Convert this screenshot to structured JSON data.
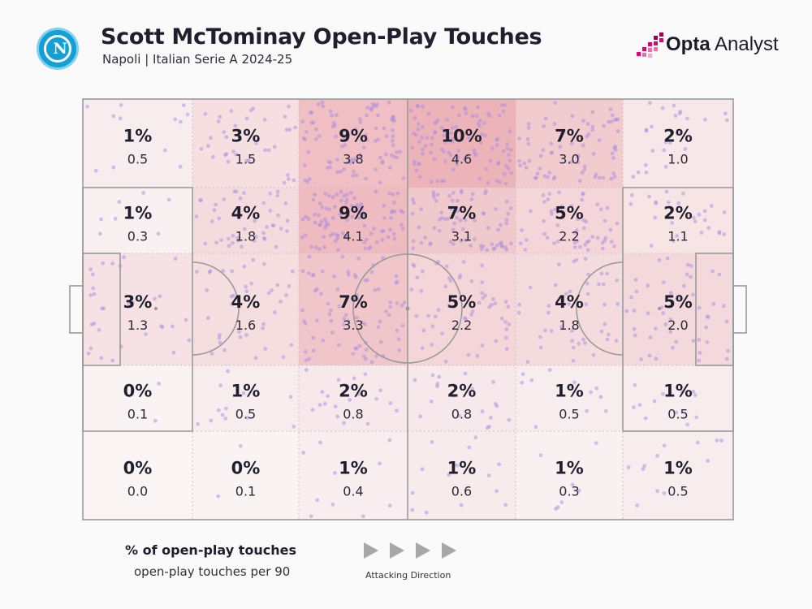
{
  "header": {
    "title": "Scott McTominay Open-Play Touches",
    "subtitle": "Napoli | Italian Serie A 2024-25",
    "club_badge_letter": "N",
    "brand_bold": "Opta",
    "brand_light": " Analyst"
  },
  "legend": {
    "pct_label": "% of open-play touches",
    "per90_label": "open-play touches per 90",
    "direction_label": "Attacking Direction"
  },
  "colors": {
    "heat_base": "#e8a0a6",
    "dot": "#a98be0",
    "line": "#9a9a9a"
  },
  "chart_data": {
    "type": "heatmap",
    "title": "Scott McTominay Open-Play Touches",
    "rows": 5,
    "cols": 6,
    "zones_pct": [
      [
        "1%",
        "3%",
        "9%",
        "10%",
        "7%",
        "2%"
      ],
      [
        "1%",
        "4%",
        "9%",
        "7%",
        "5%",
        "2%"
      ],
      [
        "3%",
        "4%",
        "7%",
        "5%",
        "4%",
        "5%"
      ],
      [
        "0%",
        "1%",
        "2%",
        "2%",
        "1%",
        "1%"
      ],
      [
        "0%",
        "0%",
        "1%",
        "1%",
        "1%",
        "1%"
      ]
    ],
    "zones_per90": [
      [
        "0.5",
        "1.5",
        "3.8",
        "4.6",
        "3.0",
        "1.0"
      ],
      [
        "0.3",
        "1.8",
        "4.1",
        "3.1",
        "2.2",
        "1.1"
      ],
      [
        "1.3",
        "1.6",
        "3.3",
        "2.2",
        "1.8",
        "2.0"
      ],
      [
        "0.1",
        "0.5",
        "0.8",
        "0.8",
        "0.5",
        "0.5"
      ],
      [
        "0.0",
        "0.1",
        "0.4",
        "0.6",
        "0.3",
        "0.5"
      ]
    ],
    "attacking_direction": "left-to-right"
  }
}
